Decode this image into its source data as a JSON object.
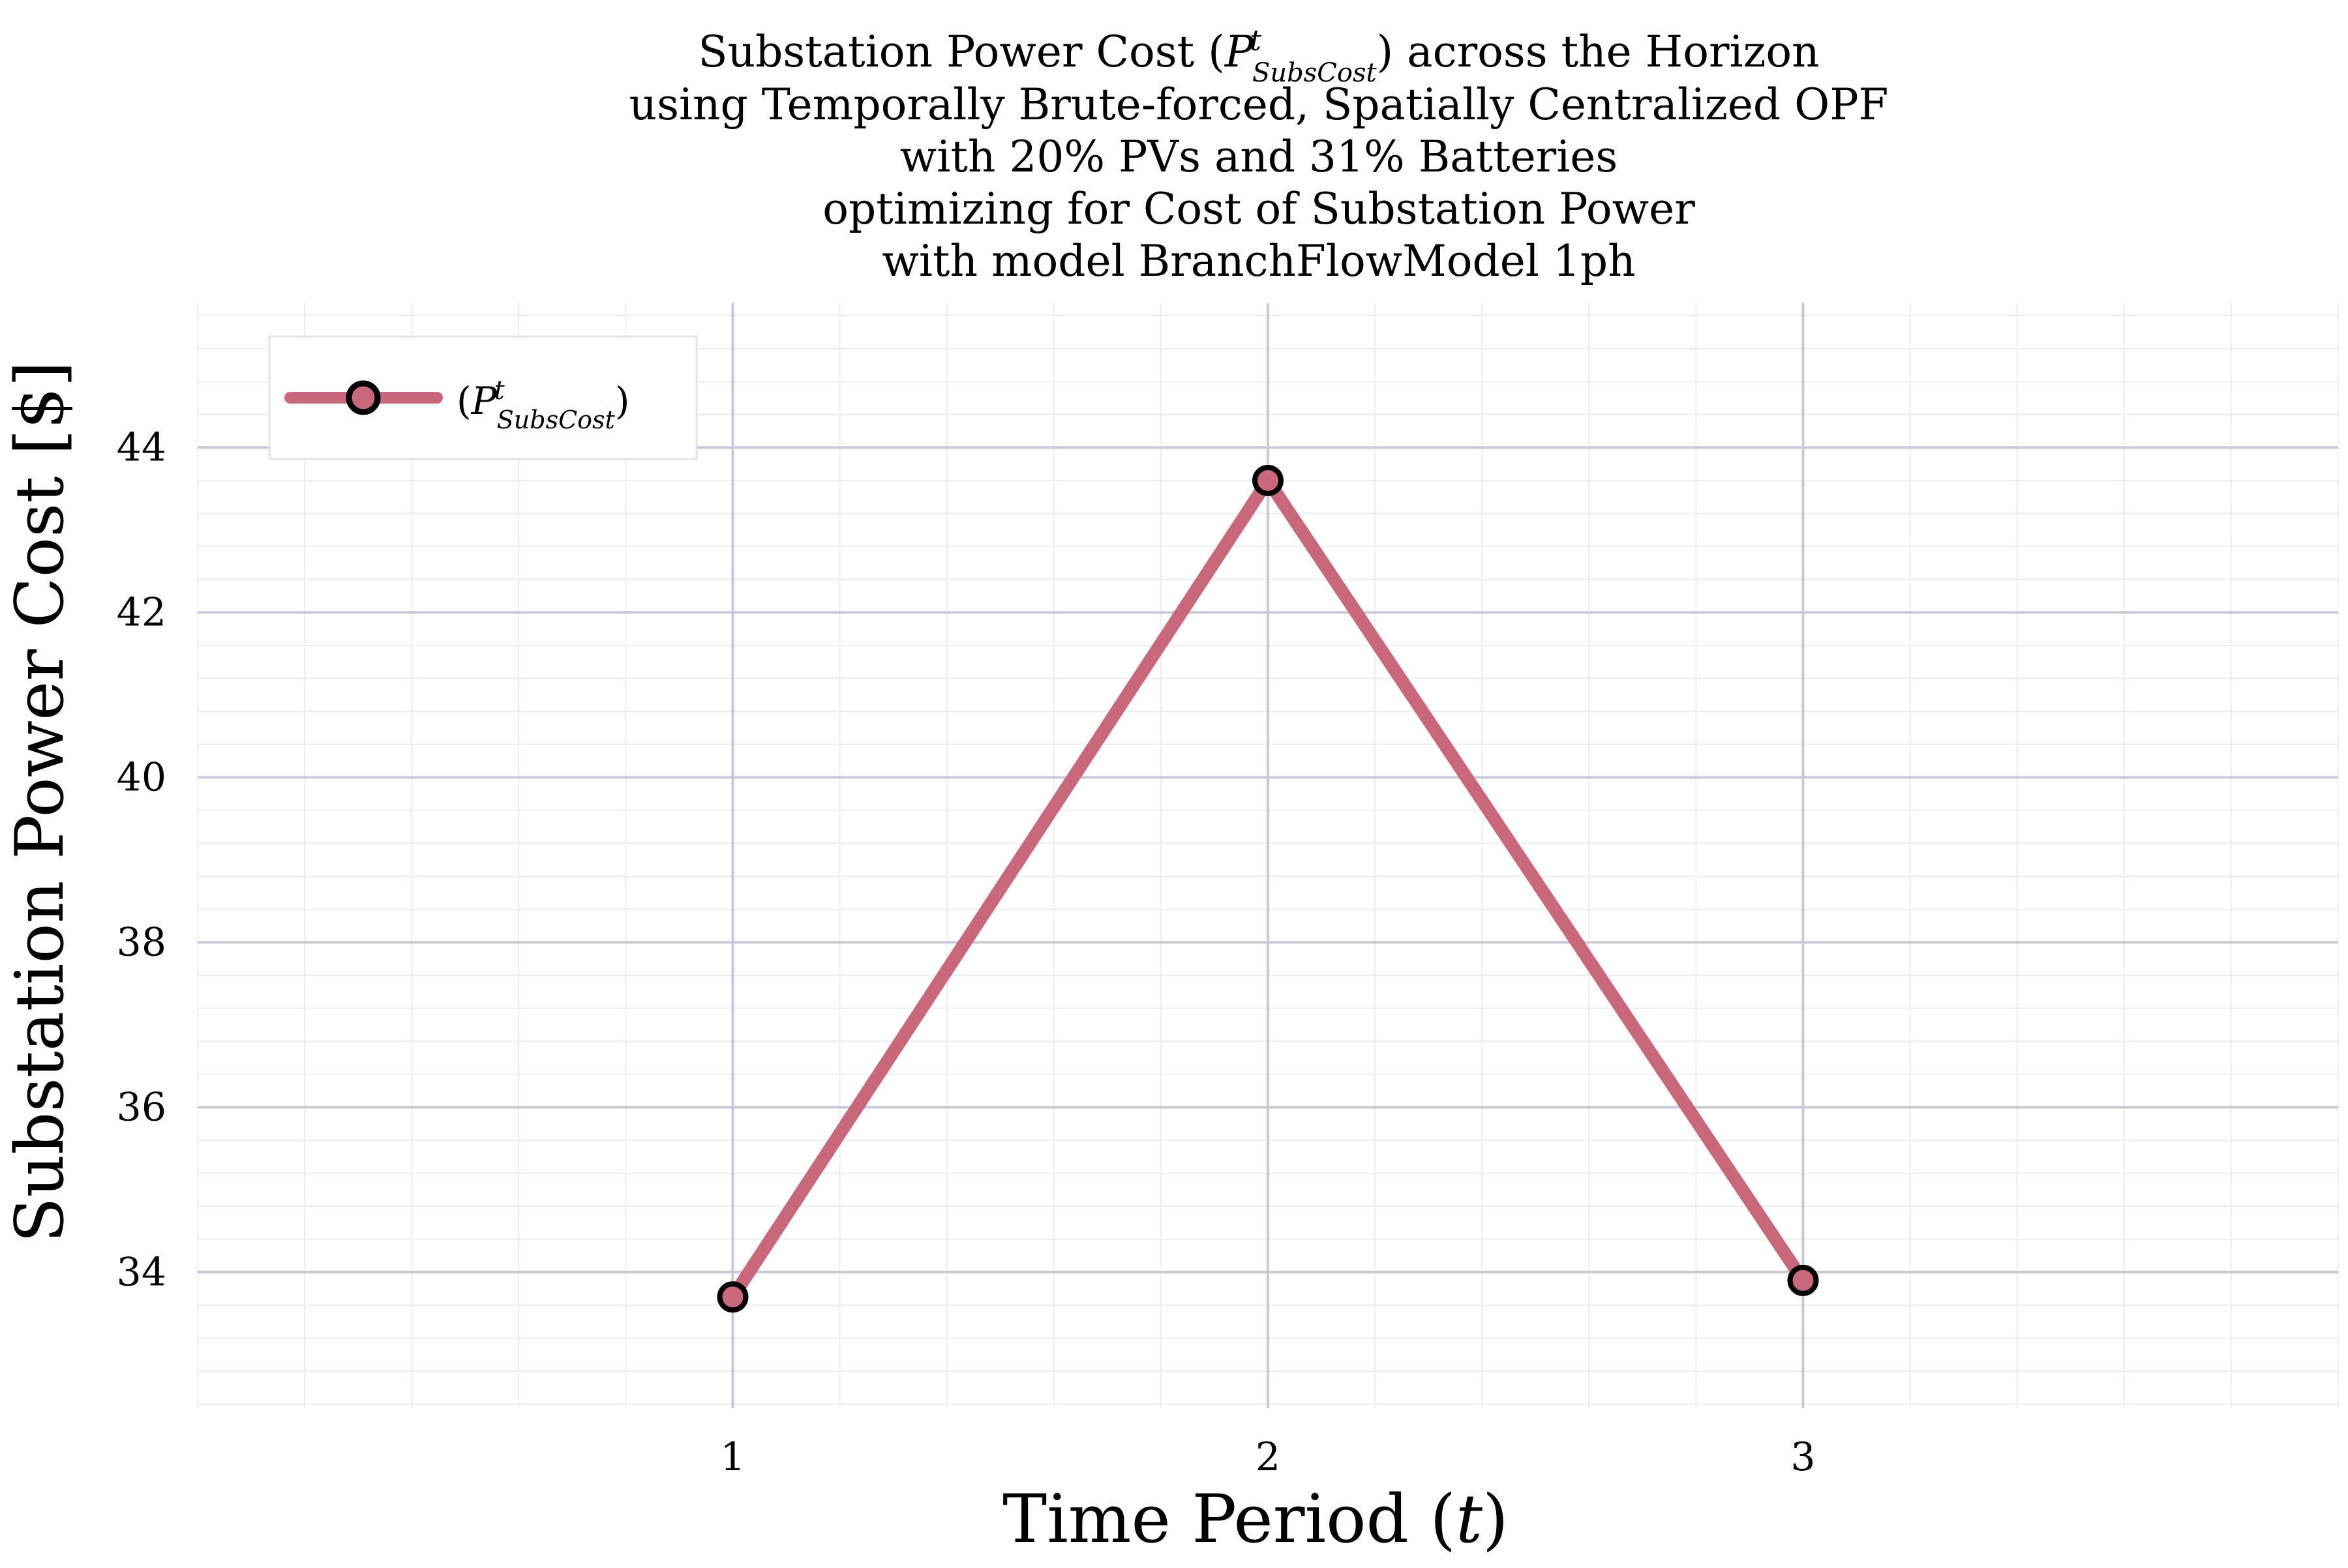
{
  "chart_data": {
    "type": "line",
    "title_lines": [
      "Substation Power Cost (P^t_SubsCost) across the Horizon",
      "using Temporally Brute-forced, Spatially Centralized OPF",
      "with 20% PVs and 31% Batteries",
      "optimizing for Cost of Substation Power",
      "with model BranchFlowModel 1ph"
    ],
    "xlabel": "Time Period (t)",
    "ylabel": "Substation Power Cost [$]",
    "x": [
      1,
      2,
      3
    ],
    "x_ticks": [
      1,
      2,
      3
    ],
    "y_ticks": [
      34,
      36,
      38,
      40,
      42,
      44
    ],
    "xlim": [
      0,
      4
    ],
    "ylim": [
      32.35,
      45.75
    ],
    "series": [
      {
        "name": "(P^t_SubsCost)",
        "values": [
          33.7,
          43.6,
          33.9
        ],
        "color": "#c8687a",
        "marker_fill": "#c8687a",
        "marker_edge": "#000000"
      }
    ],
    "grid": true,
    "legend_position": "top-left"
  }
}
